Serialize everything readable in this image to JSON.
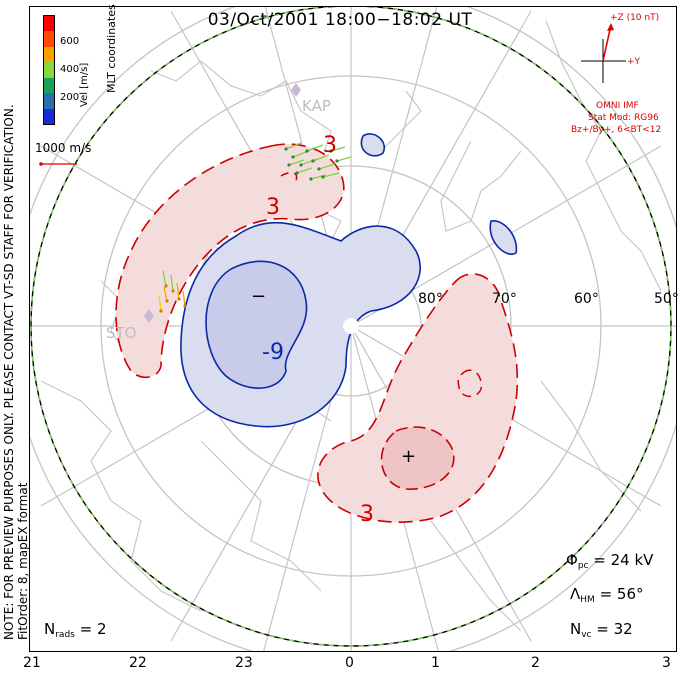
{
  "title": "03/Oct/2001 18:00−18:02 UT",
  "side_note": {
    "line1": "NOTE: FOR PREVIEW PURPOSES ONLY. PLEASE CONTACT VT-SD STAFF FOR VERIFICATION.",
    "line2": "FitOrder: 8, mapEX format"
  },
  "colorbar": {
    "title": "Vel [m/s]",
    "coord_label": "MLT coordinates",
    "ticks": [
      "600",
      "400",
      "200"
    ],
    "colors": [
      "#ff0000",
      "#ff4a00",
      "#ffa000",
      "#86d93d",
      "#1aa05a",
      "#2a6fb0",
      "#1a2ad6"
    ]
  },
  "velocity_reference": {
    "label": "1000 m/s",
    "color": "#e00000"
  },
  "imf": {
    "z_label": "+Z (10 nT)",
    "y_label": "+Y",
    "source": "OMNI IMF",
    "model": "Stat Mod: RG96",
    "bins": "Bz+/By+, 6<BT<12",
    "color": "#e00000"
  },
  "stations": [
    "KAP",
    "STO"
  ],
  "latitude_labels": [
    "80°",
    "70°",
    "60°",
    "50°"
  ],
  "contour_labels": [
    "3",
    "3",
    "-9",
    "3"
  ],
  "markers": {
    "min": "−",
    "max": "+"
  },
  "stats": {
    "phi_pc": {
      "symbol": "Φ",
      "sub": "pc",
      "value": "= 24 kV"
    },
    "lambda_hm": {
      "symbol": "Λ",
      "sub": "HM",
      "value": "= 56°"
    },
    "n_vc": {
      "symbol": "N",
      "sub": "vc",
      "value": "= 32"
    },
    "n_rads": {
      "symbol": "N",
      "sub": "rads",
      "value": "= 2"
    }
  },
  "mlt_labels": [
    "21",
    "22",
    "23",
    "0",
    "1",
    "2",
    "3"
  ],
  "colors": {
    "positive_fill": "#f5dcdc",
    "positive_core": "#eec4c4",
    "negative_fill": "#dadcef",
    "negative_core": "#c8cbea",
    "positive_line": "#cc0000",
    "negative_line": "#0a2aa8",
    "grid": "#c4c4c4",
    "coast": "#c8c8c8",
    "boundary_dash": "#7dd35a"
  }
}
